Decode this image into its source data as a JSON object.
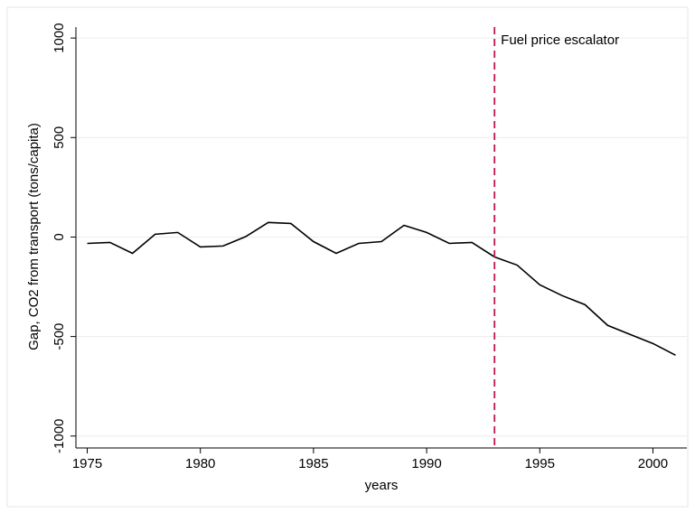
{
  "chart_data": {
    "type": "line",
    "x": [
      1975,
      1976,
      1977,
      1978,
      1979,
      1980,
      1981,
      1982,
      1983,
      1984,
      1985,
      1986,
      1987,
      1988,
      1989,
      1990,
      1991,
      1992,
      1993,
      1994,
      1995,
      1996,
      1997,
      1998,
      1999,
      2000,
      2001
    ],
    "values": [
      -32,
      -27,
      -82,
      14,
      23,
      -50,
      -45,
      2,
      73,
      68,
      -23,
      -82,
      -32,
      -23,
      59,
      23,
      -32,
      -27,
      -100,
      -141,
      -240,
      -295,
      -340,
      -444,
      -490,
      -535,
      -594
    ],
    "color": "#000000",
    "xlabel": "years",
    "ylabel": "Gap, CO2 from transport (tons/capita)",
    "xlim": [
      1974.5,
      2001.5
    ],
    "xticks": [
      1975,
      1980,
      1985,
      1990,
      1995,
      2000
    ],
    "ylim": [
      -1060,
      1055
    ],
    "yticks": [
      -1000,
      -500,
      0,
      500,
      1000
    ],
    "grid": true,
    "vline": 1993,
    "vline_color": "#c0164b",
    "annotation": "Fuel price escalator"
  }
}
